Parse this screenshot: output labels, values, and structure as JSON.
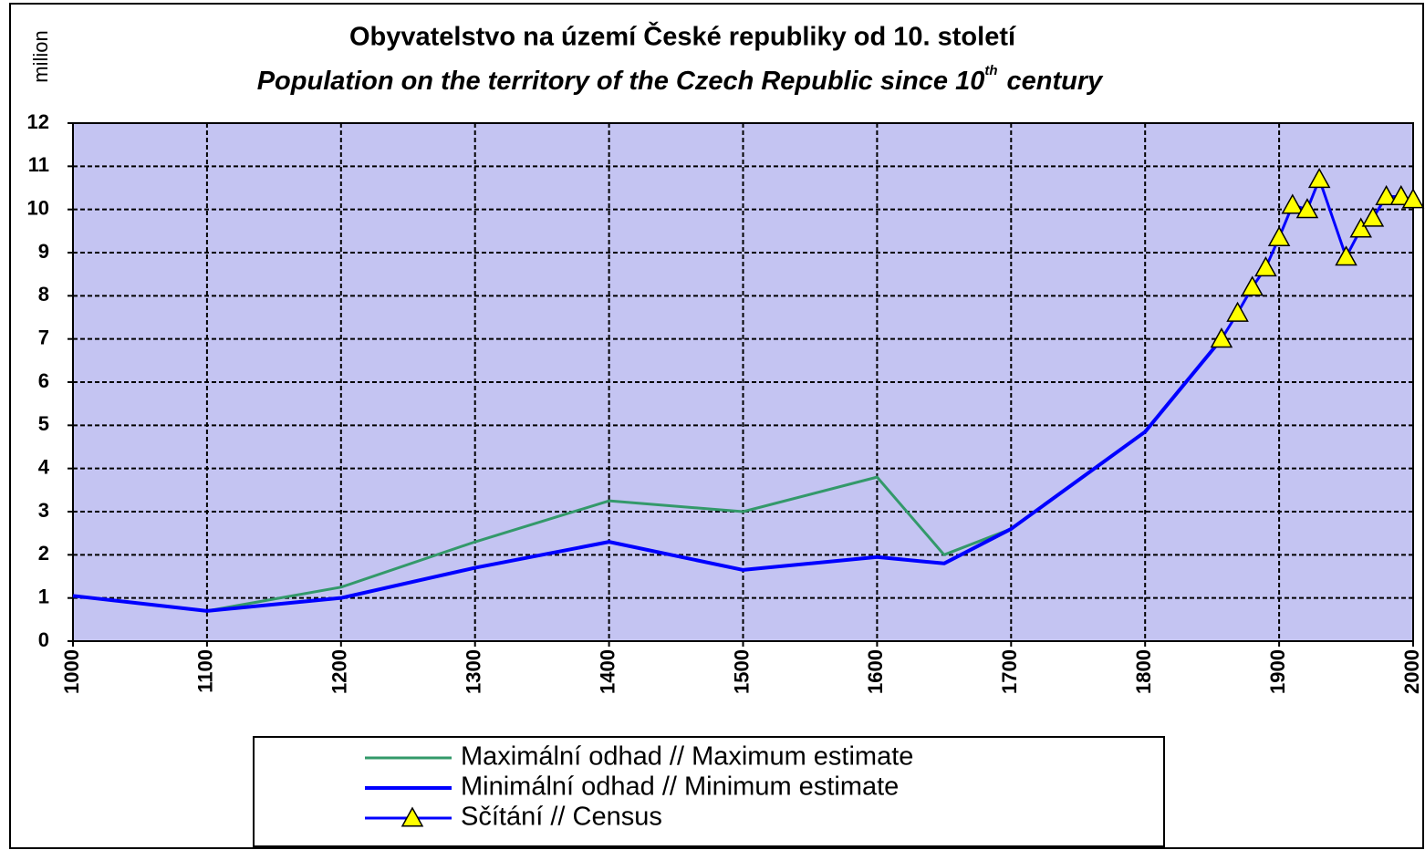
{
  "chart_data": {
    "type": "line",
    "title": "Obyvatelstvo na území České republiky od 10. století",
    "subtitle": {
      "text": "Population on the territory of the Czech Republic since 10",
      "superscript": "th",
      "end": "century"
    },
    "y_label": "milion",
    "xlim": [
      1000,
      2000
    ],
    "xticks": [
      1000,
      1100,
      1200,
      1300,
      1400,
      1500,
      1600,
      1700,
      1800,
      1900,
      2000
    ],
    "ylim": [
      0,
      12
    ],
    "yticks": [
      0,
      1,
      2,
      3,
      4,
      5,
      6,
      7,
      8,
      9,
      10,
      11,
      12
    ],
    "grid": true,
    "background": "#c4c4f2",
    "legend": "bottom",
    "series": [
      {
        "name": "Maximální odhad // Maximum estimate",
        "color": "#33996a",
        "width": 3,
        "marker": null,
        "x": [
          1000,
          1100,
          1200,
          1300,
          1400,
          1500,
          1600,
          1650,
          1700
        ],
        "values": [
          1.05,
          0.7,
          1.25,
          2.3,
          3.25,
          3.0,
          3.8,
          2.0,
          2.6
        ]
      },
      {
        "name": "Minimální odhad // Minimum estimate",
        "color": "#0000ff",
        "width": 4,
        "marker": null,
        "x": [
          1000,
          1100,
          1200,
          1300,
          1400,
          1500,
          1600,
          1650,
          1700,
          1800,
          1857
        ],
        "values": [
          1.05,
          0.7,
          1.0,
          1.7,
          2.3,
          1.65,
          1.95,
          1.8,
          2.6,
          4.85,
          7.0
        ]
      },
      {
        "name": "Sčítání // Census",
        "color": "#0000ff",
        "width": 3,
        "marker": "triangle",
        "marker_color": "#ffff00",
        "x": [
          1857,
          1869,
          1880,
          1890,
          1900,
          1910,
          1921,
          1930,
          1950,
          1961,
          1970,
          1980,
          1991,
          2000
        ],
        "values": [
          7.0,
          7.6,
          8.2,
          8.65,
          9.35,
          10.1,
          10.0,
          10.7,
          8.9,
          9.55,
          9.8,
          10.3,
          10.3,
          10.23
        ]
      }
    ]
  }
}
